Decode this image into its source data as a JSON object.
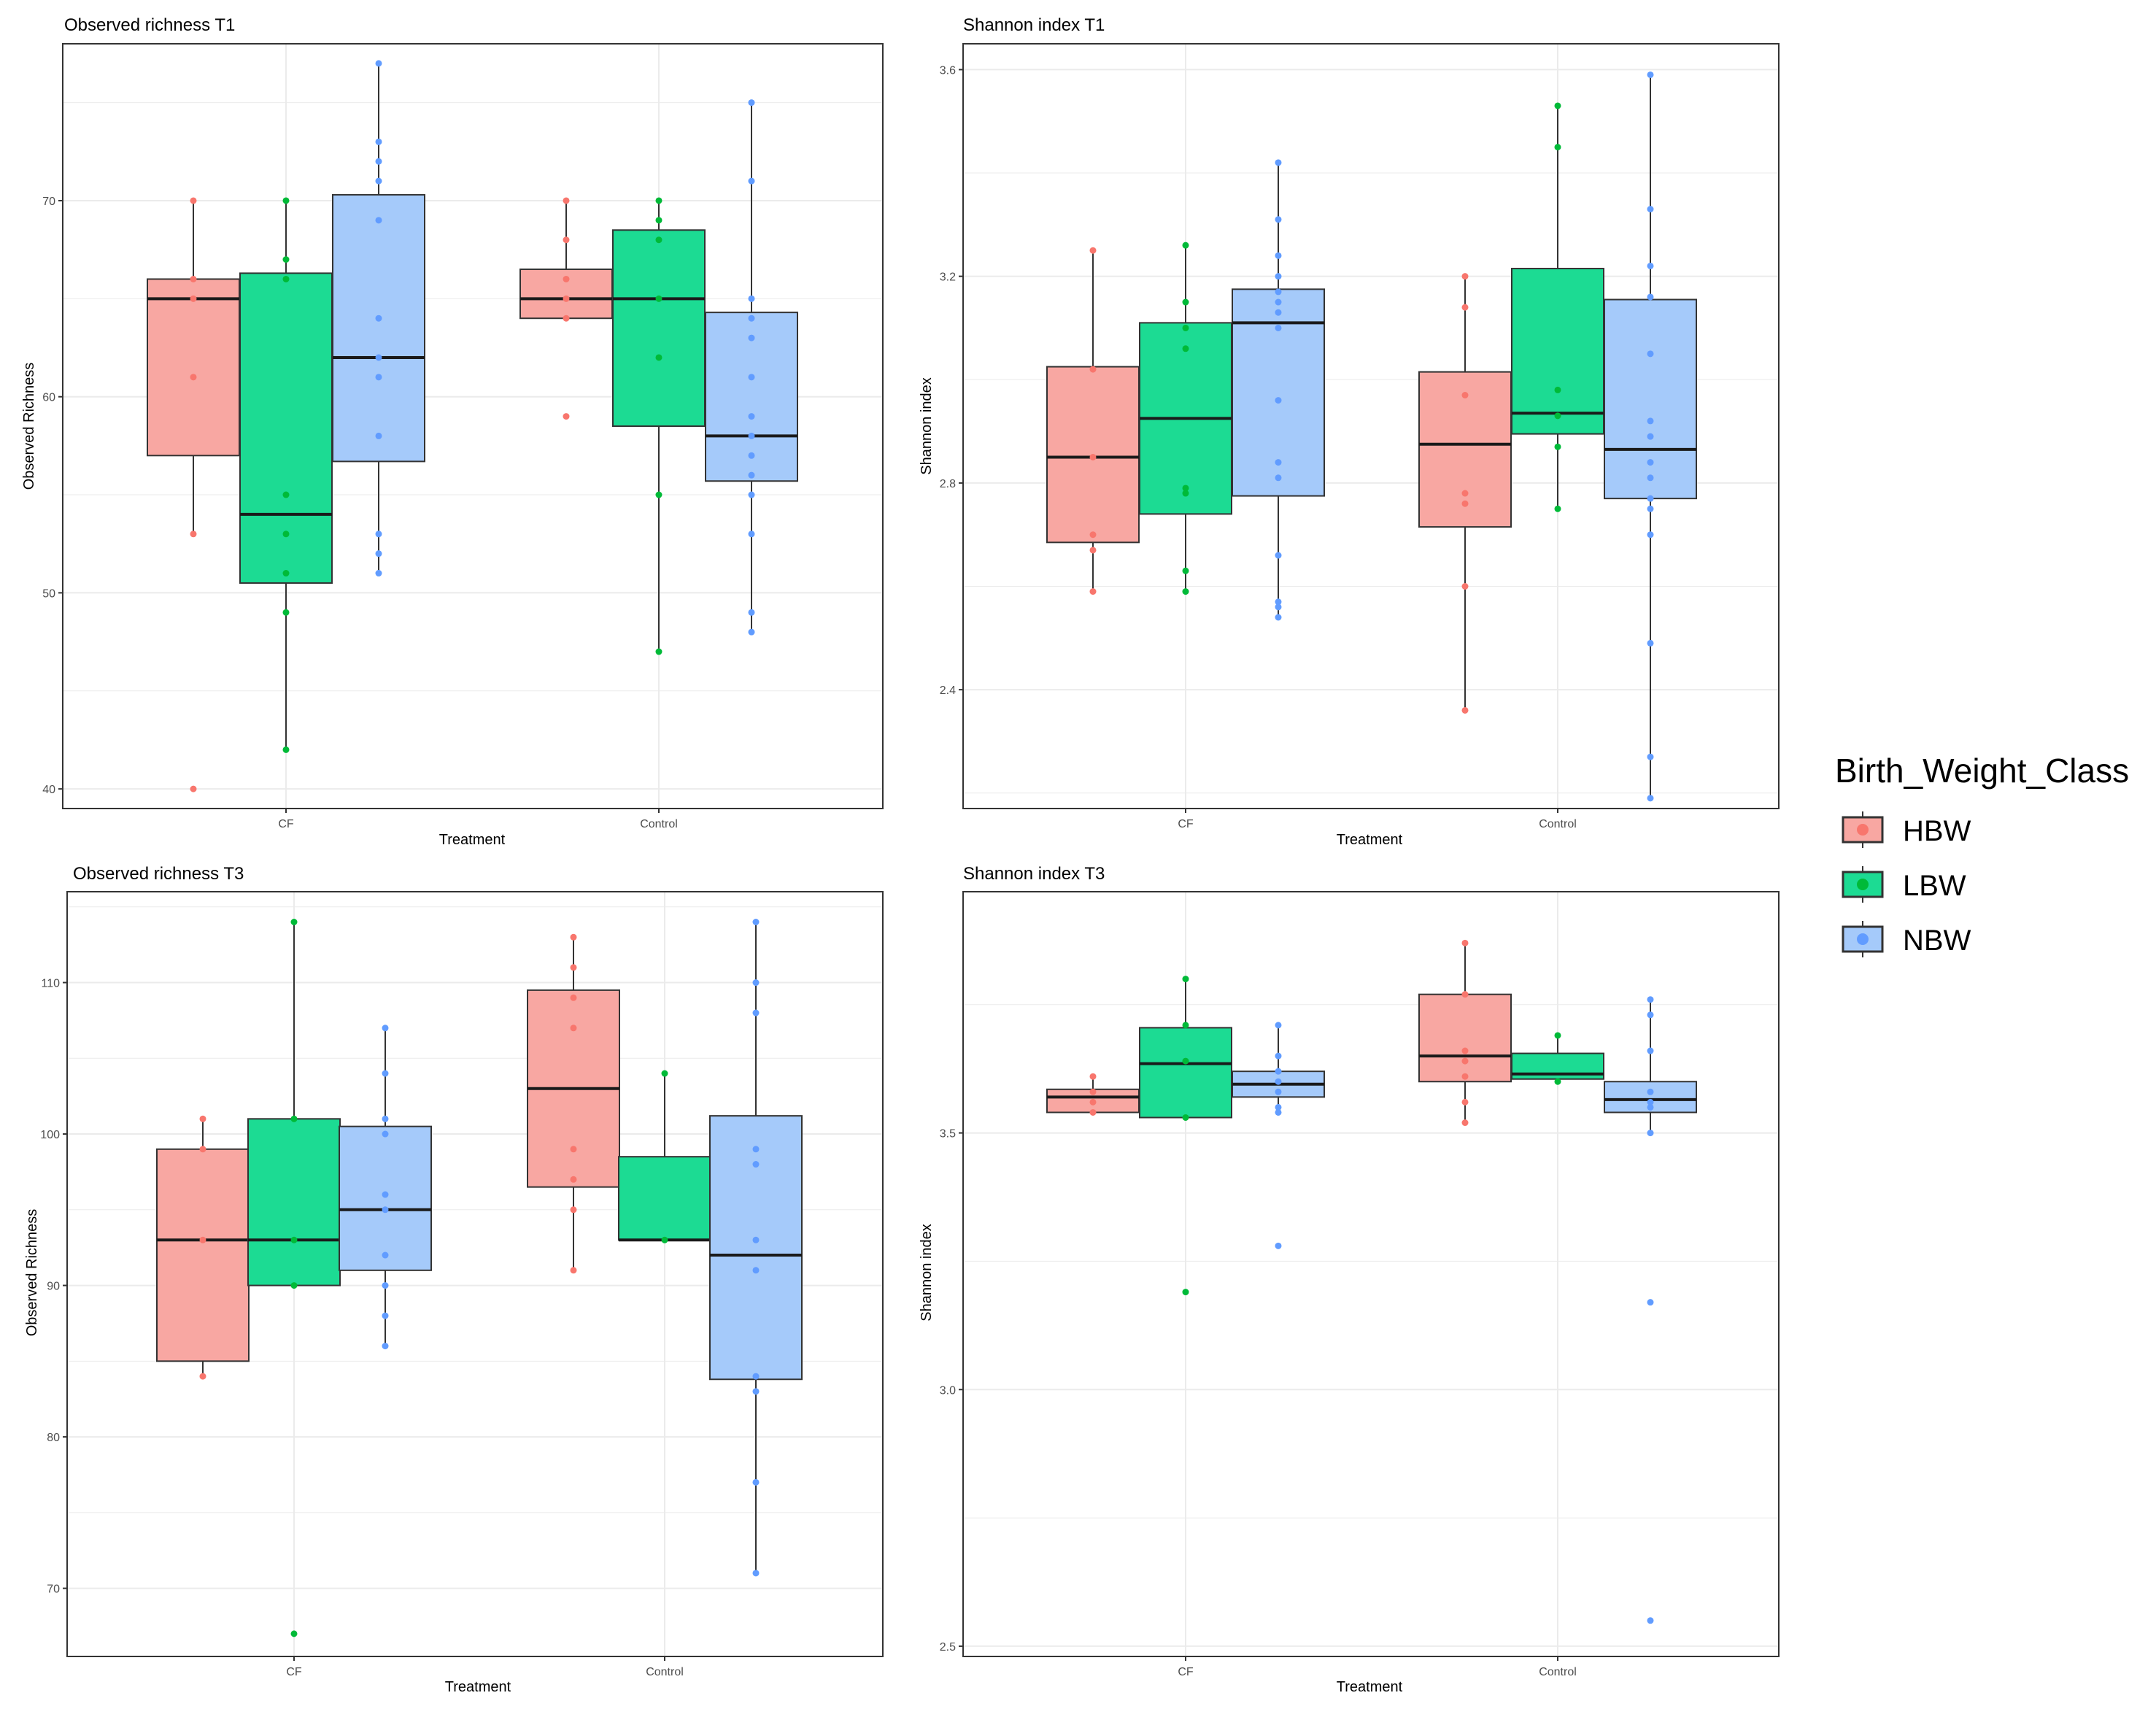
{
  "chart_data": [
    {
      "type": "boxplot",
      "title": "Observed richness T1",
      "xlabel": "Treatment",
      "ylabel": "Observed Richness",
      "categories": [
        "CF",
        "Control"
      ],
      "ylim": [
        39,
        78
      ],
      "yticks": [
        40,
        50,
        60,
        70
      ],
      "grid": true,
      "series": [
        {
          "name": "HBW",
          "boxes": [
            {
              "category": "CF",
              "q1": 57,
              "median": 65,
              "q3": 66,
              "whisker_low": 53,
              "whisker_high": 70,
              "points": [
                70,
                66,
                65,
                61,
                53,
                40
              ]
            },
            {
              "category": "Control",
              "q1": 64,
              "median": 65,
              "q3": 66.5,
              "whisker_low": 64,
              "whisker_high": 70,
              "points": [
                70,
                68,
                66,
                65,
                64,
                59
              ]
            }
          ]
        },
        {
          "name": "LBW",
          "boxes": [
            {
              "category": "CF",
              "q1": 50.5,
              "median": 54,
              "q3": 66.3,
              "whisker_low": 42,
              "whisker_high": 70,
              "points": [
                70,
                67,
                66,
                55,
                53,
                51,
                49,
                42
              ]
            },
            {
              "category": "Control",
              "q1": 58.5,
              "median": 65,
              "q3": 68.5,
              "whisker_low": 47,
              "whisker_high": 70,
              "points": [
                70,
                69,
                68,
                65,
                62,
                55,
                47
              ]
            }
          ]
        },
        {
          "name": "NBW",
          "boxes": [
            {
              "category": "CF",
              "q1": 56.7,
              "median": 62,
              "q3": 70.3,
              "whisker_low": 51,
              "whisker_high": 77,
              "points": [
                77,
                73,
                72,
                71,
                69,
                64,
                62,
                61,
                58,
                53,
                52,
                51
              ]
            },
            {
              "category": "Control",
              "q1": 55.7,
              "median": 58,
              "q3": 64.3,
              "whisker_low": 48,
              "whisker_high": 75,
              "points": [
                75,
                71,
                65,
                64,
                63,
                61,
                59,
                58,
                57,
                56,
                55,
                53,
                49,
                48
              ]
            }
          ]
        }
      ]
    },
    {
      "type": "boxplot",
      "title": "Shannon index T1",
      "xlabel": "Treatment",
      "ylabel": "Shannon index",
      "categories": [
        "CF",
        "Control"
      ],
      "ylim": [
        2.17,
        3.65
      ],
      "yticks": [
        2.4,
        2.8,
        3.2,
        3.6
      ],
      "grid": true,
      "series": [
        {
          "name": "HBW",
          "boxes": [
            {
              "category": "CF",
              "q1": 2.685,
              "median": 2.85,
              "q3": 3.025,
              "whisker_low": 2.59,
              "whisker_high": 3.25,
              "points": [
                3.25,
                3.02,
                2.85,
                2.7,
                2.67,
                2.59
              ]
            },
            {
              "category": "Control",
              "q1": 2.715,
              "median": 2.875,
              "q3": 3.015,
              "whisker_low": 2.36,
              "whisker_high": 3.2,
              "points": [
                3.2,
                3.14,
                2.97,
                2.78,
                2.76,
                2.6,
                2.36
              ]
            }
          ]
        },
        {
          "name": "LBW",
          "boxes": [
            {
              "category": "CF",
              "q1": 2.74,
              "median": 2.925,
              "q3": 3.11,
              "whisker_low": 2.59,
              "whisker_high": 3.26,
              "points": [
                3.26,
                3.15,
                3.1,
                3.06,
                2.79,
                2.78,
                2.63,
                2.59
              ]
            },
            {
              "category": "Control",
              "q1": 2.895,
              "median": 2.935,
              "q3": 3.215,
              "whisker_low": 2.75,
              "whisker_high": 3.53,
              "points": [
                3.53,
                3.45,
                2.98,
                2.93,
                2.87,
                2.75
              ]
            }
          ]
        },
        {
          "name": "NBW",
          "boxes": [
            {
              "category": "CF",
              "q1": 2.775,
              "median": 3.11,
              "q3": 3.175,
              "whisker_low": 2.54,
              "whisker_high": 3.42,
              "points": [
                3.42,
                3.31,
                3.24,
                3.2,
                3.17,
                3.15,
                3.13,
                3.1,
                2.96,
                2.84,
                2.81,
                2.66,
                2.57,
                2.56,
                2.54
              ]
            },
            {
              "category": "Control",
              "q1": 2.77,
              "median": 2.865,
              "q3": 3.155,
              "whisker_low": 2.19,
              "whisker_high": 3.59,
              "points": [
                3.59,
                3.33,
                3.22,
                3.16,
                3.05,
                2.92,
                2.89,
                2.84,
                2.81,
                2.77,
                2.75,
                2.7,
                2.49,
                2.27,
                2.19
              ]
            }
          ]
        }
      ]
    },
    {
      "type": "boxplot",
      "title": "Observed richness T3",
      "xlabel": "Treatment",
      "ylabel": "Observed Richness",
      "categories": [
        "CF",
        "Control"
      ],
      "ylim": [
        65.5,
        116
      ],
      "yticks": [
        70,
        80,
        90,
        100,
        110
      ],
      "grid": true,
      "series": [
        {
          "name": "HBW",
          "boxes": [
            {
              "category": "CF",
              "q1": 85,
              "median": 93,
              "q3": 99,
              "whisker_low": 84,
              "whisker_high": 101,
              "points": [
                101,
                99,
                93,
                84
              ]
            },
            {
              "category": "Control",
              "q1": 96.5,
              "median": 103,
              "q3": 109.5,
              "whisker_low": 91,
              "whisker_high": 113,
              "points": [
                113,
                111,
                109,
                107,
                99,
                97,
                95,
                91
              ]
            }
          ]
        },
        {
          "name": "LBW",
          "boxes": [
            {
              "category": "CF",
              "q1": 90,
              "median": 93,
              "q3": 101,
              "whisker_low": 90,
              "whisker_high": 114,
              "points": [
                114,
                101,
                93,
                90,
                67
              ]
            },
            {
              "category": "Control",
              "q1": 93,
              "median": 93,
              "q3": 98.5,
              "whisker_low": 93,
              "whisker_high": 104,
              "points": [
                104,
                93
              ]
            }
          ]
        },
        {
          "name": "NBW",
          "boxes": [
            {
              "category": "CF",
              "q1": 91,
              "median": 95,
              "q3": 100.5,
              "whisker_low": 86,
              "whisker_high": 107,
              "points": [
                107,
                104,
                101,
                100,
                96,
                95,
                92,
                90,
                88,
                86
              ]
            },
            {
              "category": "Control",
              "q1": 83.8,
              "median": 92,
              "q3": 101.2,
              "whisker_low": 71,
              "whisker_high": 114,
              "points": [
                114,
                110,
                108,
                99,
                98,
                93,
                91,
                84,
                83,
                77,
                71
              ]
            }
          ]
        }
      ]
    },
    {
      "type": "boxplot",
      "title": "Shannon index T3",
      "xlabel": "Treatment",
      "ylabel": "Shannon index",
      "categories": [
        "CF",
        "Control"
      ],
      "ylim": [
        2.48,
        3.97
      ],
      "yticks": [
        2.5,
        3.0,
        3.5
      ],
      "grid": true,
      "series": [
        {
          "name": "HBW",
          "boxes": [
            {
              "category": "CF",
              "q1": 3.54,
              "median": 3.57,
              "q3": 3.585,
              "whisker_low": 3.535,
              "whisker_high": 3.61,
              "points": [
                3.61,
                3.58,
                3.56,
                3.54
              ]
            },
            {
              "category": "Control",
              "q1": 3.6,
              "median": 3.65,
              "q3": 3.77,
              "whisker_low": 3.52,
              "whisker_high": 3.87,
              "points": [
                3.87,
                3.77,
                3.66,
                3.64,
                3.61,
                3.56,
                3.52
              ]
            }
          ]
        },
        {
          "name": "LBW",
          "boxes": [
            {
              "category": "CF",
              "q1": 3.53,
              "median": 3.635,
              "q3": 3.705,
              "whisker_low": 3.53,
              "whisker_high": 3.8,
              "points": [
                3.8,
                3.71,
                3.64,
                3.53,
                3.19
              ]
            },
            {
              "category": "Control",
              "q1": 3.605,
              "median": 3.615,
              "q3": 3.655,
              "whisker_low": 3.595,
              "whisker_high": 3.69,
              "points": [
                3.69,
                3.6
              ]
            }
          ]
        },
        {
          "name": "NBW",
          "boxes": [
            {
              "category": "CF",
              "q1": 3.57,
              "median": 3.595,
              "q3": 3.62,
              "whisker_low": 3.54,
              "whisker_high": 3.71,
              "points": [
                3.71,
                3.65,
                3.62,
                3.6,
                3.58,
                3.55,
                3.54,
                3.28
              ]
            },
            {
              "category": "Control",
              "q1": 3.54,
              "median": 3.565,
              "q3": 3.6,
              "whisker_low": 3.5,
              "whisker_high": 3.76,
              "points": [
                3.76,
                3.73,
                3.66,
                3.58,
                3.56,
                3.55,
                3.5,
                3.17,
                2.55
              ]
            }
          ]
        }
      ]
    }
  ],
  "legend": {
    "title": "Birth_Weight_Class",
    "items": [
      "HBW",
      "LBW",
      "NBW"
    ]
  },
  "colors": {
    "HBW": {
      "fill": "#f8a7a2",
      "point": "#f8766d"
    },
    "LBW": {
      "fill": "#1cdb93",
      "point": "#00ba38"
    },
    "NBW": {
      "fill": "#a5cafa",
      "point": "#619cff"
    },
    "grid": "#ebebeb",
    "frame": "#333333",
    "line": "#333333"
  }
}
